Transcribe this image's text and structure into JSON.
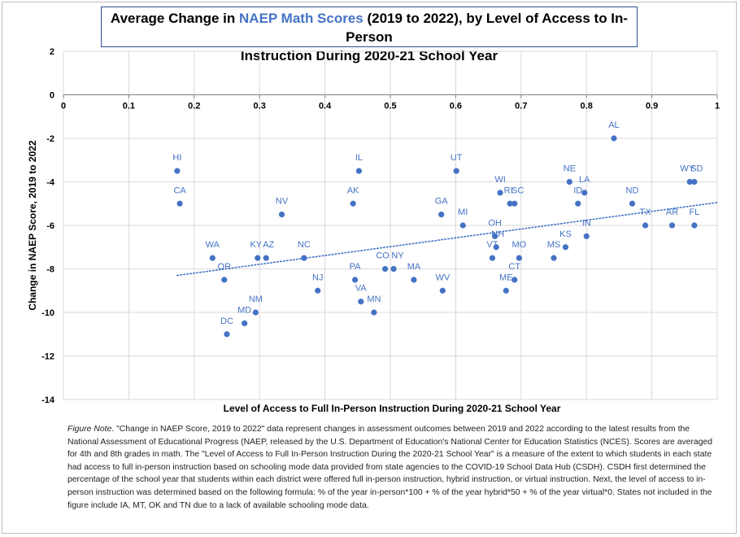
{
  "title": {
    "part1": "Average Change in ",
    "part2": "NAEP Math Scores",
    "part3": " (2019 to 2022), by Level of Access to In-Person",
    "line2": "Instruction During 2020-21 School Year"
  },
  "note": {
    "label": "Figure Note",
    "text": ". \"Change in NAEP Score, 2019 to 2022\" data represent changes in assessment outcomes between 2019 and 2022 according to the latest results from the National Assessment of Educational Progress (NAEP, released by the U.S. Department of Education's National Center for Education Statistics (NCES). Scores are averaged for 4th and 8th grades in math. The \"Level of Access to Full In-Person Instruction During the 2020-21 School Year\" is a measure of the extent to which students in each state had access to full in-person instruction based on schooling mode data provided from state agencies to the COVID-19 School Data Hub (CSDH). CSDH first determined the percentage of the school year that students within each district were offered full in-person instruction, hybrid instruction, or virtual instruction. Next, the level of access to in-person instruction was determined based on the following formula: % of the year in-person*100 + % of the year hybrid*50 + % of the year virtual*0. States not included in the figure include IA, MT, OK and TN due to a lack of available schooling mode data."
  },
  "chart_data": {
    "type": "scatter",
    "xlabel": "Level of Access to Full In-Person Instruction During 2020-21 School Year",
    "ylabel": "Change in NAEP Score, 2019 to 2022",
    "xlim": [
      0,
      1
    ],
    "ylim": [
      -14,
      2
    ],
    "xticks": [
      "0",
      "0.1",
      "0.2",
      "0.3",
      "0.4",
      "0.5",
      "0.6",
      "0.7",
      "0.8",
      "0.9",
      "1"
    ],
    "yticks": [
      "2",
      "0",
      "-2",
      "-4",
      "-6",
      "-8",
      "-10",
      "-12",
      "-14"
    ],
    "point_color": "#4472c4",
    "label_color": "#4472c4",
    "points": [
      {
        "label": "HI",
        "x": 0.174,
        "y": -3.5
      },
      {
        "label": "CA",
        "x": 0.178,
        "y": -5.0
      },
      {
        "label": "WA",
        "x": 0.228,
        "y": -7.5
      },
      {
        "label": "OR",
        "x": 0.246,
        "y": -8.5
      },
      {
        "label": "DC",
        "x": 0.25,
        "y": -11.0
      },
      {
        "label": "MD",
        "x": 0.277,
        "y": -10.5
      },
      {
        "label": "NM",
        "x": 0.294,
        "y": -10.0
      },
      {
        "label": "KY",
        "x": 0.297,
        "y": -7.5
      },
      {
        "label": "AZ",
        "x": 0.31,
        "y": -7.5
      },
      {
        "label": "NV",
        "x": 0.334,
        "y": -5.5
      },
      {
        "label": "NC",
        "x": 0.368,
        "y": -7.5
      },
      {
        "label": "NJ",
        "x": 0.389,
        "y": -9.0
      },
      {
        "label": "AK",
        "x": 0.443,
        "y": -5.0
      },
      {
        "label": "PA",
        "x": 0.446,
        "y": -8.5
      },
      {
        "label": "IL",
        "x": 0.452,
        "y": -3.5
      },
      {
        "label": "VA",
        "x": 0.455,
        "y": -9.5
      },
      {
        "label": "MN",
        "x": 0.475,
        "y": -10.0
      },
      {
        "label": "CO",
        "x": 0.492,
        "y": -8.0
      },
      {
        "label": "NY",
        "x": 0.505,
        "y": -8.0
      },
      {
        "label": "MA",
        "x": 0.536,
        "y": -8.5
      },
      {
        "label": "GA",
        "x": 0.578,
        "y": -5.5
      },
      {
        "label": "WV",
        "x": 0.58,
        "y": -9.0
      },
      {
        "label": "UT",
        "x": 0.601,
        "y": -3.5
      },
      {
        "label": "MI",
        "x": 0.611,
        "y": -6.0
      },
      {
        "label": "VT",
        "x": 0.656,
        "y": -7.5
      },
      {
        "label": "OH",
        "x": 0.66,
        "y": -6.5
      },
      {
        "label": "NH",
        "x": 0.662,
        "y": -7.0
      },
      {
        "label": "WI",
        "x": 0.668,
        "y": -4.5
      },
      {
        "label": "ME",
        "x": 0.677,
        "y": -9.0
      },
      {
        "label": "RI",
        "x": 0.683,
        "y": -5.0
      },
      {
        "label": "SC",
        "x": 0.69,
        "y": -5.0
      },
      {
        "label": "CT",
        "x": 0.69,
        "y": -8.5
      },
      {
        "label": "MO",
        "x": 0.697,
        "y": -7.5
      },
      {
        "label": "MS",
        "x": 0.75,
        "y": -7.5
      },
      {
        "label": "KS",
        "x": 0.768,
        "y": -7.0
      },
      {
        "label": "NE",
        "x": 0.774,
        "y": -4.0
      },
      {
        "label": "ID",
        "x": 0.787,
        "y": -5.0
      },
      {
        "label": "LA",
        "x": 0.797,
        "y": -4.5
      },
      {
        "label": "IN",
        "x": 0.8,
        "y": -6.5
      },
      {
        "label": "AL",
        "x": 0.842,
        "y": -2.0
      },
      {
        "label": "ND",
        "x": 0.87,
        "y": -5.0
      },
      {
        "label": "TX",
        "x": 0.89,
        "y": -6.0
      },
      {
        "label": "AR",
        "x": 0.931,
        "y": -6.0
      },
      {
        "label": "WY",
        "x": 0.958,
        "y": -4.0
      },
      {
        "label": "SD",
        "x": 0.965,
        "y": -4.0
      },
      {
        "label": "FL",
        "x": 0.965,
        "y": -6.0
      }
    ],
    "trendline": {
      "style": "dotted",
      "x": [
        0.174,
        1.0
      ],
      "y": [
        -8.3,
        -4.95
      ]
    }
  }
}
